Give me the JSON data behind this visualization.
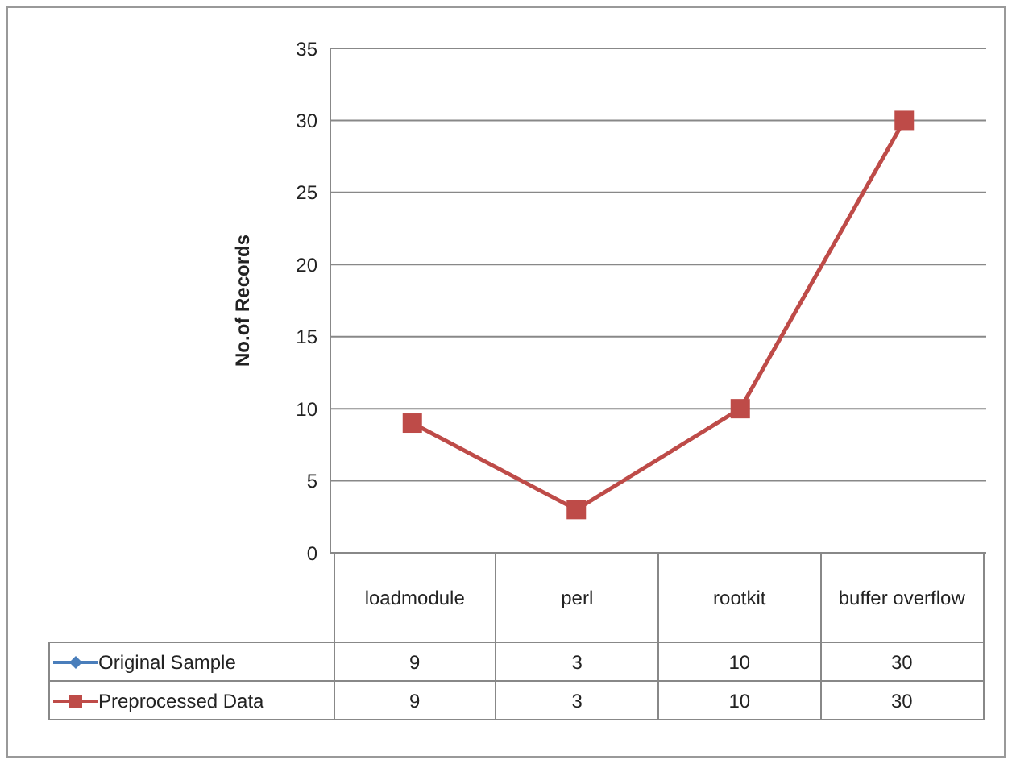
{
  "chart_data": {
    "type": "line",
    "ylabel": "No.of Records",
    "categories": [
      "loadmodule",
      "perl",
      "rootkit",
      "buffer overflow"
    ],
    "series": [
      {
        "name": "Original Sample",
        "color": "#4a7ebb",
        "marker": "diamond",
        "values": [
          null,
          null,
          null,
          null
        ],
        "value_labels": [
          "9",
          "3",
          "10",
          "30"
        ]
      },
      {
        "name": "Preprocessed Data",
        "color": "#be4b48",
        "marker": "square",
        "values": [
          9,
          3,
          10,
          30
        ],
        "value_labels": [
          "9",
          "3",
          "10",
          "30"
        ]
      }
    ],
    "ylim": [
      0,
      35
    ],
    "yticks": [
      0,
      5,
      10,
      15,
      20,
      25,
      30,
      35
    ],
    "grid": "y",
    "legend": "bottom"
  }
}
